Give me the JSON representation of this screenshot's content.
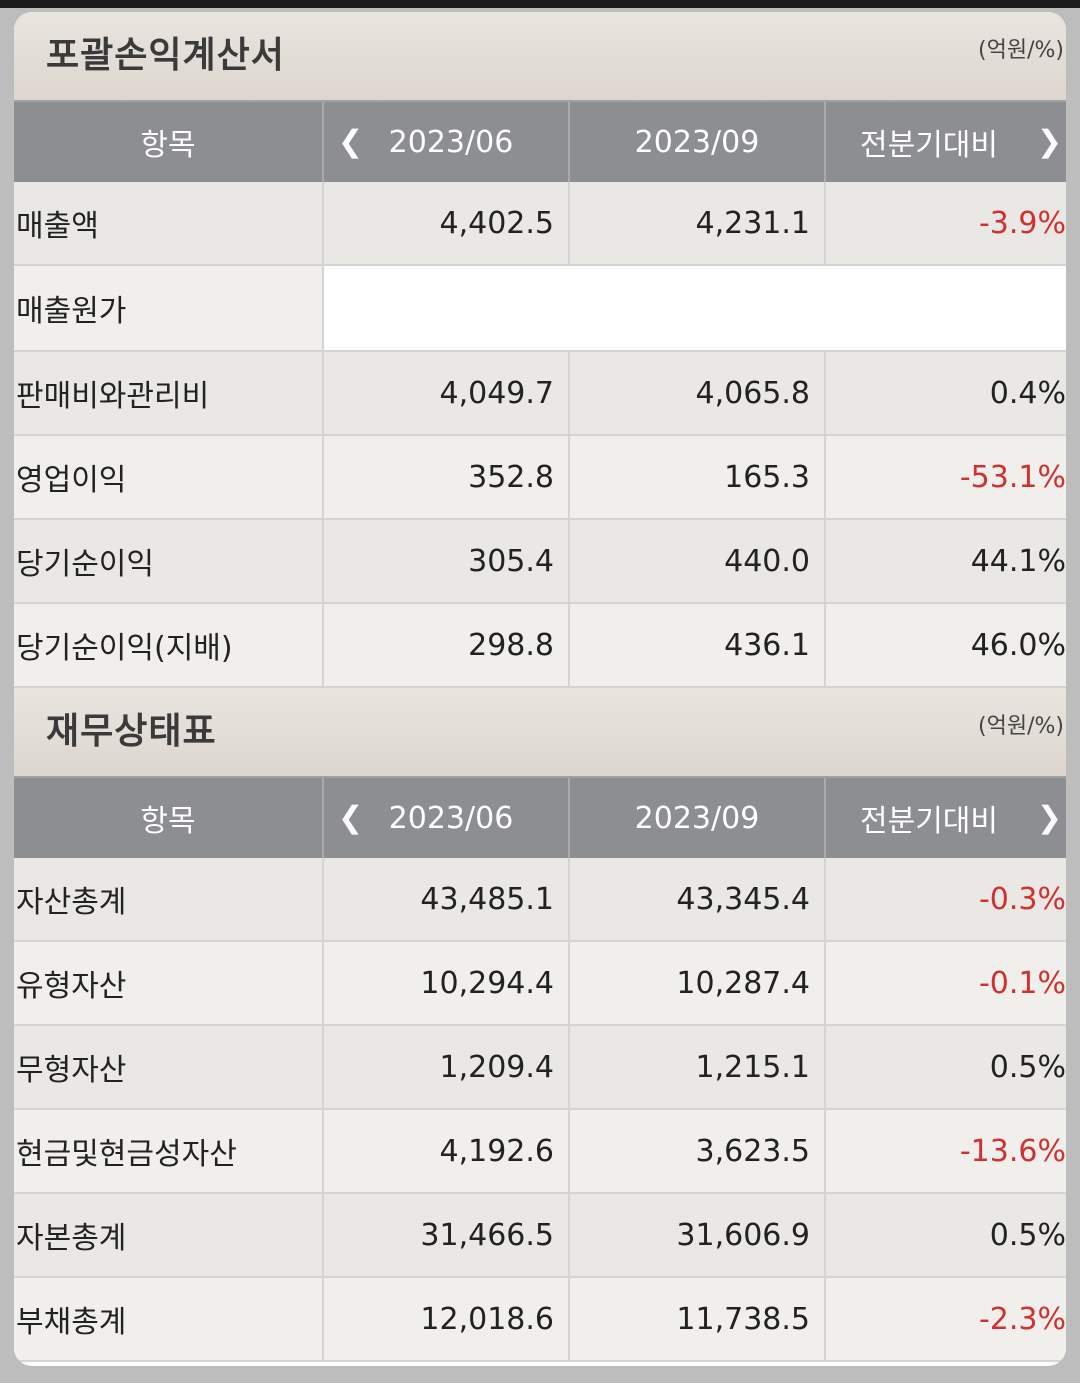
{
  "income": {
    "title": "포괄손익계산서",
    "unit": "(억원/%)",
    "headers": {
      "item": "항목",
      "p1": "2023/06",
      "p2": "2023/09",
      "chg": "전분기대비"
    },
    "rows": [
      {
        "label": "매출액",
        "p1": "4,402.5",
        "p2": "4,231.1",
        "chg": "-3.9%",
        "neg": true
      },
      {
        "label": "매출원가",
        "p1": "",
        "p2": "",
        "chg": "",
        "blank": true
      },
      {
        "label": "판매비와관리비",
        "p1": "4,049.7",
        "p2": "4,065.8",
        "chg": "0.4%",
        "neg": false
      },
      {
        "label": "영업이익",
        "p1": "352.8",
        "p2": "165.3",
        "chg": "-53.1%",
        "neg": true
      },
      {
        "label": "당기순이익",
        "p1": "305.4",
        "p2": "440.0",
        "chg": "44.1%",
        "neg": false
      },
      {
        "label": "당기순이익(지배)",
        "p1": "298.8",
        "p2": "436.1",
        "chg": "46.0%",
        "neg": false
      }
    ]
  },
  "balance": {
    "title": "재무상태표",
    "unit": "(억원/%)",
    "headers": {
      "item": "항목",
      "p1": "2023/06",
      "p2": "2023/09",
      "chg": "전분기대비"
    },
    "rows": [
      {
        "label": "자산총계",
        "p1": "43,485.1",
        "p2": "43,345.4",
        "chg": "-0.3%",
        "neg": true
      },
      {
        "label": "유형자산",
        "p1": "10,294.4",
        "p2": "10,287.4",
        "chg": "-0.1%",
        "neg": true
      },
      {
        "label": "무형자산",
        "p1": "1,209.4",
        "p2": "1,215.1",
        "chg": "0.5%",
        "neg": false
      },
      {
        "label": "현금및현금성자산",
        "p1": "4,192.6",
        "p2": "3,623.5",
        "chg": "-13.6%",
        "neg": true
      },
      {
        "label": "자본총계",
        "p1": "31,466.5",
        "p2": "31,606.9",
        "chg": "0.5%",
        "neg": false
      },
      {
        "label": "부채총계",
        "p1": "12,018.6",
        "p2": "11,738.5",
        "chg": "-2.3%",
        "neg": true
      }
    ]
  },
  "icons": {
    "prev": "chevron-left-icon",
    "next": "chevron-right-icon"
  },
  "colors": {
    "negative": "#d03030",
    "header_bg": "#8c8e91"
  }
}
